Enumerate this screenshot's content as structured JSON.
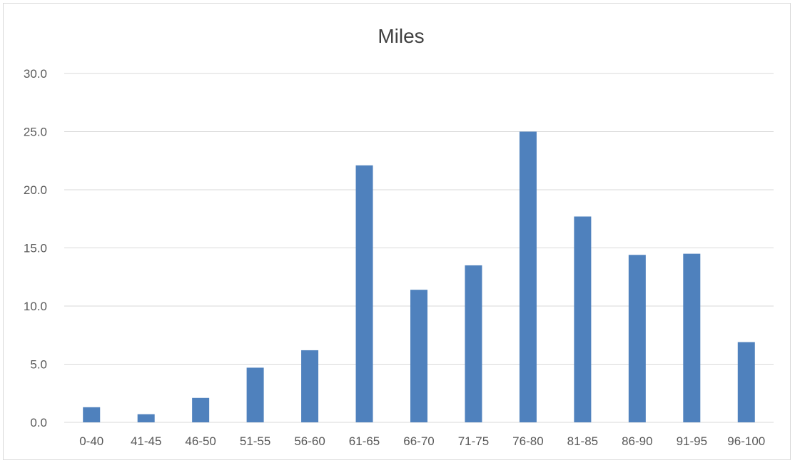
{
  "chart_data": {
    "type": "bar",
    "title": "Miles",
    "xlabel": "",
    "ylabel": "",
    "categories": [
      "0-40",
      "41-45",
      "46-50",
      "51-55",
      "56-60",
      "61-65",
      "66-70",
      "71-75",
      "76-80",
      "81-85",
      "86-90",
      "91-95",
      "96-100"
    ],
    "values": [
      1.3,
      0.7,
      2.1,
      4.7,
      6.2,
      22.1,
      11.4,
      13.5,
      25.0,
      17.7,
      14.4,
      14.5,
      6.9
    ],
    "ylim": [
      0,
      30
    ],
    "yticks": [
      "0.0",
      "5.0",
      "10.0",
      "15.0",
      "20.0",
      "25.0",
      "30.0"
    ],
    "grid": true,
    "legend": "none",
    "colors": {
      "bar": "#4f81bd",
      "grid": "#d9d9d9",
      "axis": "#d9d9d9"
    }
  }
}
